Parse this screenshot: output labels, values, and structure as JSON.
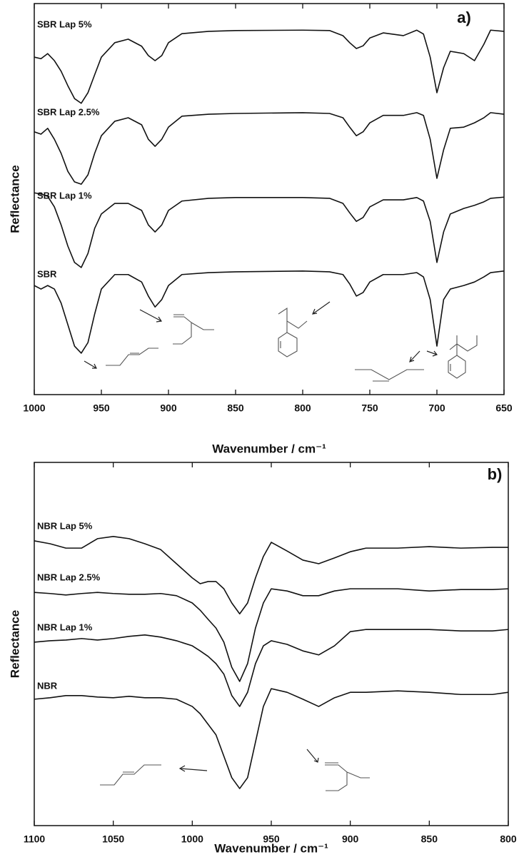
{
  "chart_data": [
    {
      "type": "line",
      "panel_label": "a)",
      "xlabel": "Wavenumber / cm⁻¹",
      "ylabel": "Reflectance",
      "xlim": [
        1000,
        650
      ],
      "xticks": [
        1000,
        950,
        900,
        850,
        800,
        750,
        700,
        650
      ],
      "ylim": [
        0,
        100
      ],
      "x": [
        1000,
        995,
        990,
        985,
        980,
        975,
        970,
        965,
        960,
        955,
        950,
        940,
        930,
        920,
        915,
        910,
        905,
        900,
        890,
        870,
        850,
        800,
        780,
        770,
        765,
        760,
        755,
        750,
        740,
        725,
        715,
        710,
        705,
        700,
        695,
        690,
        680,
        672,
        665,
        660,
        650
      ],
      "series": [
        {
          "name": "SBR Lap 5%",
          "color": "#111111",
          "values": [
            86.3,
            85.9,
            87.2,
            85.4,
            82.7,
            79.0,
            75.7,
            74.5,
            77.2,
            81.8,
            86.3,
            90.0,
            90.9,
            89.1,
            86.7,
            85.4,
            86.7,
            90.0,
            92.3,
            92.9,
            93.1,
            93.2,
            93.1,
            91.8,
            90.0,
            88.5,
            89.2,
            91.2,
            92.5,
            91.8,
            93.2,
            92.2,
            86.3,
            77.2,
            83.6,
            87.8,
            87.2,
            85.4,
            89.6,
            93.2,
            92.9
          ]
        },
        {
          "name": "SBR Lap 2.5%",
          "color": "#111111",
          "values": [
            67.2,
            66.6,
            68.1,
            65.3,
            61.7,
            57.1,
            54.4,
            53.8,
            56.2,
            61.7,
            66.2,
            69.9,
            70.8,
            69.0,
            65.3,
            63.5,
            65.3,
            68.4,
            71.2,
            71.7,
            71.9,
            72.1,
            71.9,
            70.8,
            68.4,
            66.2,
            67.2,
            69.5,
            71.4,
            71.4,
            72.1,
            71.4,
            65.3,
            55.3,
            62.6,
            68.1,
            68.4,
            69.5,
            70.8,
            72.1,
            71.7
          ]
        },
        {
          "name": "SBR Lap 1%",
          "color": "#111111",
          "values": [
            51.6,
            51.3,
            50.7,
            48.0,
            43.4,
            38.0,
            33.8,
            32.5,
            36.1,
            42.5,
            46.2,
            48.9,
            48.9,
            47.1,
            43.4,
            41.6,
            43.4,
            47.1,
            49.5,
            50.2,
            50.4,
            50.4,
            50.2,
            48.9,
            46.5,
            44.3,
            45.3,
            48.0,
            49.8,
            49.8,
            50.4,
            49.5,
            44.3,
            33.8,
            41.6,
            46.2,
            47.6,
            48.4,
            49.3,
            50.2,
            50.5
          ]
        },
        {
          "name": "SBR",
          "color": "#111111",
          "values": [
            27.9,
            27.0,
            27.9,
            27.0,
            23.4,
            17.9,
            12.4,
            10.6,
            13.3,
            20.6,
            27.0,
            30.7,
            30.7,
            28.8,
            25.2,
            22.4,
            24.3,
            27.9,
            30.7,
            31.2,
            31.4,
            31.6,
            31.4,
            30.7,
            28.3,
            25.2,
            26.1,
            28.8,
            30.7,
            30.7,
            31.2,
            30.1,
            24.3,
            12.4,
            24.3,
            27.0,
            27.9,
            28.8,
            30.1,
            31.2,
            31.6
          ]
        }
      ]
    },
    {
      "type": "line",
      "panel_label": "b)",
      "xlabel": "Wavenumber / cm⁻¹",
      "ylabel": "Reflectance",
      "xlim": [
        1100,
        800
      ],
      "xticks": [
        1100,
        1050,
        1000,
        950,
        900,
        850,
        800
      ],
      "ylim": [
        0,
        100
      ],
      "x": [
        1100,
        1090,
        1080,
        1070,
        1060,
        1050,
        1040,
        1030,
        1020,
        1010,
        1000,
        995,
        990,
        985,
        980,
        975,
        970,
        965,
        960,
        955,
        950,
        940,
        930,
        920,
        910,
        900,
        890,
        870,
        850,
        830,
        810,
        800
      ],
      "series": [
        {
          "name": "NBR Lap 5%",
          "color": "#111111",
          "values": [
            78.4,
            77.6,
            76.4,
            76.4,
            79.0,
            79.6,
            79.0,
            77.6,
            76.0,
            72.1,
            68.2,
            66.6,
            67.2,
            67.2,
            65.2,
            61.3,
            58.3,
            61.3,
            68.2,
            74.1,
            78.0,
            75.6,
            73.1,
            72.1,
            73.7,
            75.4,
            76.4,
            76.4,
            76.8,
            76.4,
            76.6,
            76.6
          ]
        },
        {
          "name": "NBR Lap 2.5%",
          "color": "#111111",
          "values": [
            64.2,
            63.9,
            63.5,
            63.9,
            64.2,
            63.9,
            63.7,
            63.7,
            63.9,
            63.3,
            61.3,
            59.3,
            56.8,
            54.4,
            50.5,
            43.6,
            39.7,
            44.6,
            54.4,
            61.3,
            65.2,
            64.6,
            63.3,
            63.3,
            64.6,
            65.2,
            65.2,
            65.2,
            64.6,
            65.0,
            65.0,
            65.2
          ]
        },
        {
          "name": "NBR Lap 1%",
          "color": "#111111",
          "values": [
            50.5,
            50.9,
            51.1,
            51.5,
            51.1,
            51.5,
            52.1,
            52.5,
            51.9,
            50.9,
            49.5,
            48.1,
            46.6,
            44.6,
            41.7,
            35.8,
            32.8,
            36.7,
            44.6,
            49.5,
            50.9,
            49.9,
            48.1,
            47.0,
            49.5,
            53.4,
            54.0,
            54.0,
            54.0,
            53.6,
            53.6,
            54.0
          ]
        },
        {
          "name": "NBR",
          "color": "#111111",
          "values": [
            34.8,
            35.2,
            35.8,
            35.8,
            35.4,
            35.2,
            35.6,
            35.2,
            35.2,
            34.8,
            32.8,
            30.8,
            27.9,
            25.0,
            19.1,
            13.2,
            10.2,
            13.2,
            23.0,
            32.8,
            37.7,
            36.7,
            34.8,
            32.8,
            35.2,
            36.7,
            36.7,
            37.1,
            36.7,
            36.1,
            36.1,
            36.7
          ]
        }
      ]
    }
  ]
}
